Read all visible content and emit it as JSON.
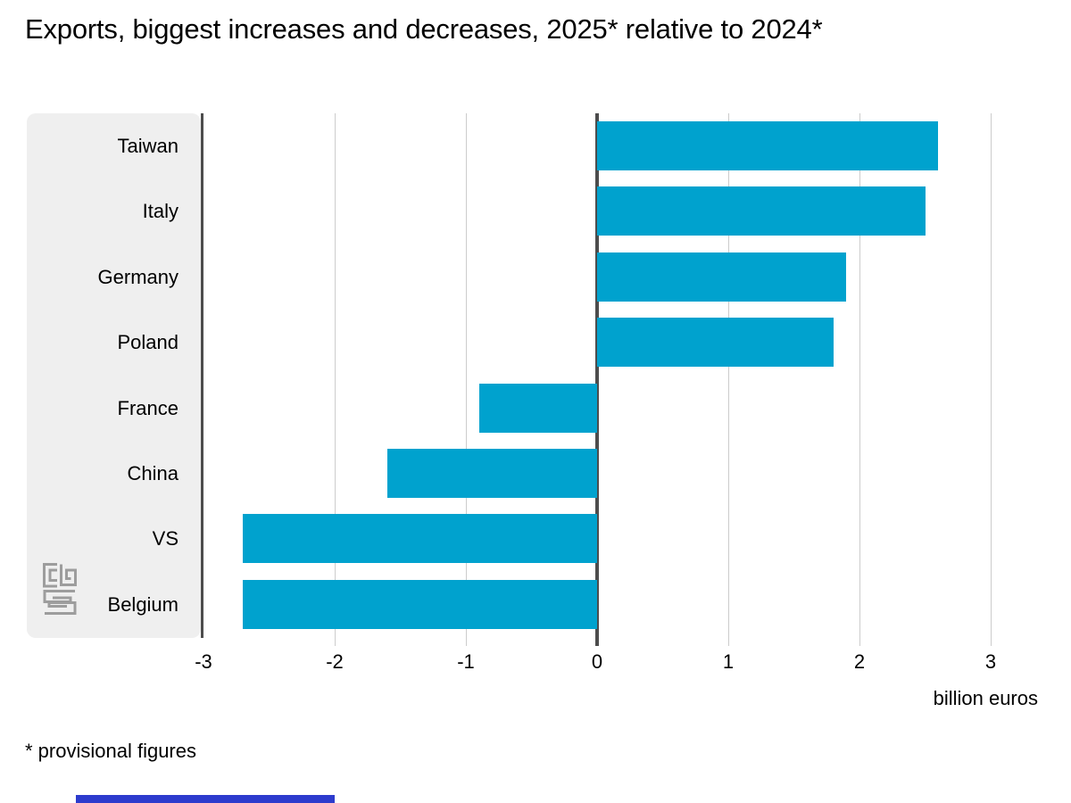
{
  "title": "Exports, biggest increases and decreases, 2025* relative to 2024*",
  "footnote": "* provisional figures",
  "axis_unit_label": "billion euros",
  "logo": "cbs-logo",
  "colors": {
    "bar": "#00a2ce",
    "panel": "#efefef",
    "axis": "#4d4d4d",
    "grid": "#cccccc",
    "stripe": "#2d3bcd",
    "logo": "#9d9d9d",
    "text": "#000000"
  },
  "chart_data": {
    "type": "bar",
    "orientation": "horizontal",
    "title": "Exports, biggest increases and decreases, 2025* relative to 2024*",
    "categories": [
      "Taiwan",
      "Italy",
      "Germany",
      "Poland",
      "France",
      "China",
      "VS",
      "Belgium"
    ],
    "values": [
      2.6,
      2.5,
      1.9,
      1.8,
      -0.9,
      -1.6,
      -2.7,
      -2.7
    ],
    "xlabel": "billion euros",
    "xticks": [
      -3,
      -2,
      -1,
      0,
      1,
      2,
      3
    ],
    "xlim": [
      -3,
      3.4
    ],
    "grid": "vertical",
    "legend": "none",
    "footnote": "* provisional figures"
  }
}
